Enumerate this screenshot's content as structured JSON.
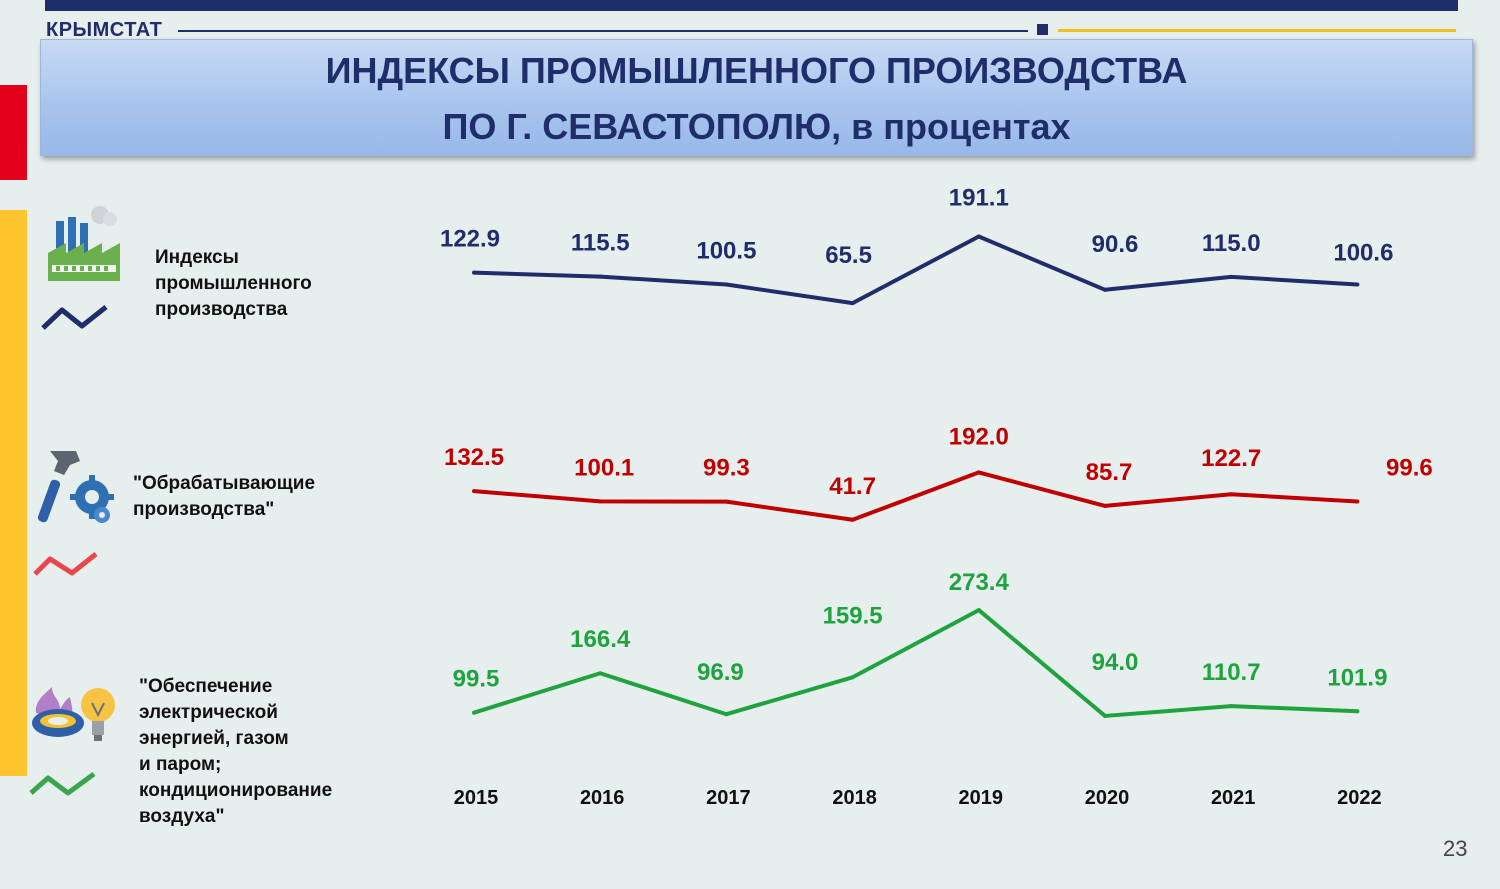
{
  "header": {
    "brand": "КРЫМСТАТ",
    "title_line1": "ИНДЕКСЫ ПРОМЫШЛЕННОГО ПРОИЗВОДСТВА",
    "title_line2": "ПО Г. СЕВАСТОПОЛЮ, в процентах"
  },
  "legend": {
    "industrial": [
      "Индексы",
      "промышленного",
      "производства"
    ],
    "manufacturing": [
      "\"Обрабатывающие",
      "производства\""
    ],
    "energy": [
      "\"Обеспечение",
      "электрической",
      "энергией, газом",
      "и паром;",
      "кондиционирование",
      "воздуха\""
    ]
  },
  "icons": {
    "industrial": "factory-icon",
    "manufacturing": "hammer-gear-icon",
    "energy": "gas-flame-bulb-icon",
    "industrial_line": "line-sample-icon",
    "manufacturing_line": "line-sample-icon",
    "energy_line": "line-sample-icon"
  },
  "colors": {
    "industrial": "#1f2d6b",
    "manufacturing": "#c00000",
    "manufacturing_swatch": "#e8474c",
    "energy": "#1fa33e",
    "energy_swatch": "#3aa54a"
  },
  "slide_number": "23",
  "chart_data": {
    "type": "line",
    "categories": [
      "2015",
      "2016",
      "2017",
      "2018",
      "2019",
      "2020",
      "2021",
      "2022"
    ],
    "series": [
      {
        "key": "industrial",
        "values": [
          122.9,
          115.5,
          100.5,
          65.5,
          191.1,
          90.6,
          115.0,
          100.6
        ],
        "labels": [
          "122.9",
          "115.5",
          "100.5",
          "65.5",
          "191.1",
          "90.6",
          "115.0",
          "100.6"
        ]
      },
      {
        "key": "manufacturing",
        "values": [
          132.5,
          100.1,
          99.3,
          41.7,
          192.0,
          85.7,
          122.7,
          99.6
        ],
        "labels": [
          "132.5",
          "100.1",
          "99.3",
          "41.7",
          "192.0",
          "85.7",
          "122.7",
          "99.6"
        ]
      },
      {
        "key": "energy",
        "values": [
          99.5,
          166.4,
          96.9,
          159.5,
          273.4,
          94.0,
          110.7,
          101.9
        ],
        "labels": [
          "99.5",
          "166.4",
          "96.9",
          "159.5",
          "273.4",
          "94.0",
          "110.7",
          "101.9"
        ]
      }
    ]
  }
}
